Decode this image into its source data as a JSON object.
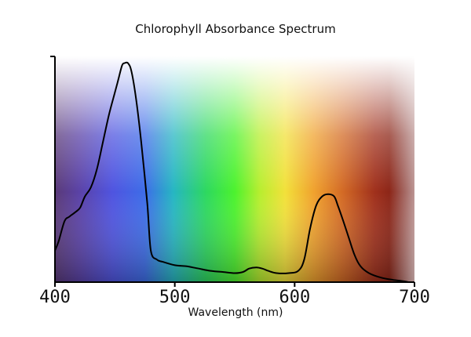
{
  "chart_data": {
    "type": "line",
    "title": "Chlorophyll Absorbance Spectrum",
    "xlabel": "Wavelength (nm)",
    "ylabel": "",
    "xlim": [
      400,
      700
    ],
    "ylim": [
      0,
      1.0
    ],
    "xticks": [
      400,
      500,
      600,
      700
    ],
    "xtick_labels": [
      "400",
      "500",
      "600",
      "700"
    ],
    "grid": false,
    "line_color": "#000000",
    "background": "visible-spectrum gradient (violet → blue → green → yellow → orange → red)",
    "series": [
      {
        "x": [
          400,
          403,
          408,
          412,
          417,
          421,
          425,
          430,
          435,
          440,
          445,
          450,
          453,
          456,
          458,
          461,
          464,
          468,
          472,
          477,
          480,
          485,
          490,
          500,
          510,
          520,
          530,
          540,
          550,
          557,
          562,
          568,
          573,
          578,
          585,
          595,
          603,
          608,
          613,
          618,
          623,
          628,
          633,
          636,
          640,
          645,
          650,
          655,
          662,
          672,
          682,
          690,
          695
        ],
        "y": [
          0.14,
          0.18,
          0.27,
          0.29,
          0.31,
          0.33,
          0.38,
          0.42,
          0.5,
          0.62,
          0.74,
          0.84,
          0.9,
          0.96,
          0.97,
          0.97,
          0.93,
          0.8,
          0.62,
          0.35,
          0.14,
          0.1,
          0.09,
          0.075,
          0.07,
          0.06,
          0.05,
          0.045,
          0.04,
          0.045,
          0.06,
          0.065,
          0.06,
          0.05,
          0.04,
          0.04,
          0.05,
          0.1,
          0.24,
          0.34,
          0.38,
          0.39,
          0.38,
          0.34,
          0.28,
          0.2,
          0.12,
          0.07,
          0.04,
          0.02,
          0.01,
          0.005,
          0.0
        ]
      }
    ]
  }
}
